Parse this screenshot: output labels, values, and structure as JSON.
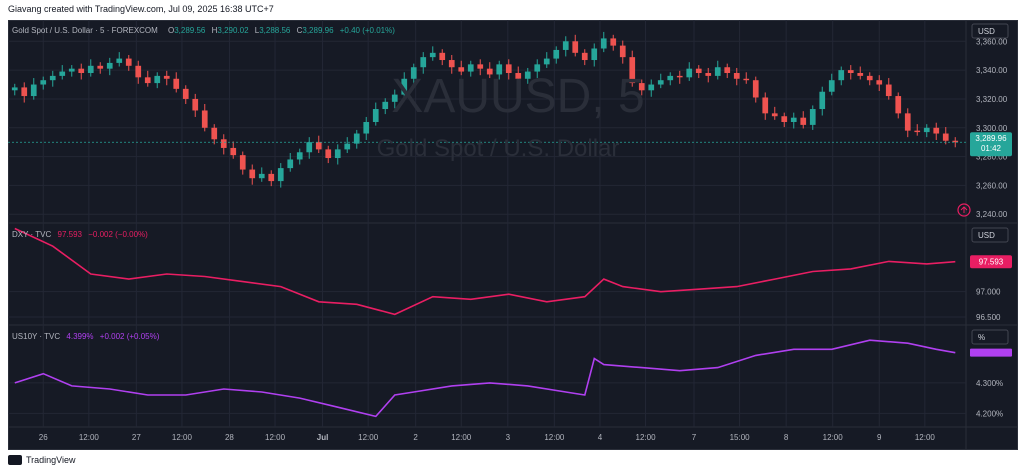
{
  "header_text": "Giavang created with TradingView.com, Jul 09, 2025 16:38 UTC+7",
  "footer_text": "TradingView",
  "colors": {
    "bg": "#161a25",
    "grid": "#232735",
    "text": "#b2b5be",
    "candle_up": "#26a69a",
    "candle_down": "#ef5350",
    "dxy": "#e91e63",
    "us10y": "#b040f0",
    "last_price_bg": "#26a69a"
  },
  "chart_data": [
    {
      "type": "candlestick",
      "symbol": "Gold Spot / U.S. Dollar · 5 · FOREXCOM",
      "ohlc": {
        "o_label": "O",
        "o": "3,289.56",
        "h_label": "H",
        "h": "3,290.02",
        "l_label": "L",
        "l": "3,288.56",
        "c_label": "C",
        "c": "3,289.96",
        "change": "+0.40 (+0.01%)"
      },
      "watermark": "XAUUSD, 5",
      "watermark_sub": "Gold Spot / U.S. Dollar",
      "currency": "USD",
      "last_price": "3,289.96",
      "countdown": "01:42",
      "y_ticks": [
        "3,360.00",
        "3,340.00",
        "3,320.00",
        "3,300.00",
        "3,280.00",
        "3,260.00",
        "3,240.00"
      ],
      "y_tick_values": [
        3360,
        3340,
        3320,
        3300,
        3280,
        3260,
        3240
      ],
      "ylim": [
        3236,
        3372
      ],
      "x": [
        0,
        1,
        2,
        3,
        4,
        5,
        6,
        7,
        8,
        9,
        10,
        11,
        12,
        13,
        14,
        15,
        16,
        17,
        18,
        19,
        20,
        21,
        22,
        23,
        24,
        25,
        26,
        27,
        28,
        29,
        30,
        31,
        32,
        33,
        34,
        35,
        36,
        37,
        38,
        39,
        40,
        41,
        42,
        43,
        44,
        45,
        46,
        47,
        48,
        49,
        50,
        51,
        52,
        53,
        54,
        55,
        56,
        57,
        58,
        59,
        60,
        61,
        62,
        63,
        64,
        65,
        66,
        67,
        68,
        69,
        70,
        71,
        72,
        73,
        74,
        75,
        76,
        77,
        78,
        79,
        80,
        81,
        82,
        83,
        84,
        85,
        86,
        87,
        88,
        89,
        90,
        91,
        92,
        93,
        94,
        95,
        96,
        97,
        98,
        99
      ],
      "close": [
        3328,
        3322,
        3330,
        3333,
        3336,
        3339,
        3341,
        3338,
        3343,
        3341,
        3345,
        3348,
        3343,
        3335,
        3331,
        3336,
        3334,
        3327,
        3320,
        3312,
        3300,
        3292,
        3286,
        3281,
        3271,
        3265,
        3268,
        3263,
        3272,
        3278,
        3283,
        3290,
        3285,
        3279,
        3285,
        3289,
        3296,
        3304,
        3313,
        3318,
        3323,
        3334,
        3342,
        3349,
        3352,
        3347,
        3342,
        3339,
        3344,
        3341,
        3337,
        3344,
        3338,
        3334,
        3339,
        3344,
        3348,
        3354,
        3360,
        3352,
        3347,
        3355,
        3362,
        3357,
        3349,
        3331,
        3326,
        3330,
        3333,
        3336,
        3335,
        3341,
        3338,
        3336,
        3342,
        3338,
        3334,
        3333,
        3321,
        3310,
        3308,
        3304,
        3307,
        3302,
        3313,
        3325,
        3333,
        3340,
        3338,
        3336,
        3333,
        3330,
        3322,
        3310,
        3298,
        3297,
        3300,
        3296,
        3291,
        3289.96
      ],
      "last_index": 99
    },
    {
      "type": "line",
      "symbol": "DXY · TVC",
      "value": "97.593",
      "change": "−0.002 (−0.00%)",
      "currency": "USD",
      "last_label": "97.593",
      "y_ticks": [
        "97.000",
        "96.500"
      ],
      "y_tick_values": [
        97.0,
        96.5
      ],
      "ylim": [
        96.4,
        98.3
      ],
      "x": [
        0,
        4,
        8,
        12,
        16,
        20,
        24,
        28,
        32,
        36,
        40,
        44,
        48,
        52,
        56,
        60,
        62,
        64,
        68,
        72,
        76,
        80,
        84,
        88,
        92,
        96,
        99
      ],
      "values": [
        98.25,
        97.9,
        97.35,
        97.25,
        97.35,
        97.3,
        97.2,
        97.1,
        96.8,
        96.75,
        96.55,
        96.9,
        96.85,
        96.95,
        96.8,
        96.9,
        97.25,
        97.1,
        97.0,
        97.05,
        97.1,
        97.25,
        97.4,
        97.45,
        97.6,
        97.55,
        97.593
      ]
    },
    {
      "type": "line",
      "symbol": "US10Y · TVC",
      "value": "4.399%",
      "change": "+0.002 (+0.05%)",
      "currency": "%",
      "y_ticks": [
        "4.300%",
        "4.200%"
      ],
      "y_tick_values": [
        4.3,
        4.2
      ],
      "ylim": [
        4.165,
        4.48
      ],
      "x": [
        0,
        3,
        6,
        10,
        14,
        18,
        22,
        26,
        30,
        34,
        38,
        40,
        42,
        46,
        50,
        54,
        58,
        60,
        61,
        62,
        66,
        70,
        74,
        78,
        82,
        86,
        90,
        94,
        97,
        99
      ],
      "values": [
        4.3,
        4.33,
        4.29,
        4.28,
        4.26,
        4.26,
        4.28,
        4.27,
        4.25,
        4.22,
        4.19,
        4.26,
        4.27,
        4.29,
        4.3,
        4.29,
        4.27,
        4.26,
        4.38,
        4.36,
        4.35,
        4.34,
        4.35,
        4.39,
        4.41,
        4.41,
        4.44,
        4.43,
        4.41,
        4.399
      ]
    }
  ],
  "x_axis": {
    "labels": [
      "26",
      "12:00",
      "27",
      "12:00",
      "28",
      "12:00",
      "Jul",
      "12:00",
      "2",
      "12:00",
      "3",
      "12:00",
      "4",
      "12:00",
      "7",
      "15:00",
      "8",
      "12:00",
      "9",
      "12:00"
    ],
    "bold": [
      false,
      false,
      false,
      false,
      false,
      false,
      true,
      false,
      false,
      false,
      false,
      false,
      false,
      false,
      false,
      false,
      false,
      false,
      false,
      false
    ],
    "index": [
      3,
      7.8,
      12.8,
      17.6,
      22.6,
      27.4,
      32.4,
      37.2,
      42.2,
      47,
      51.9,
      56.8,
      61.6,
      66.4,
      71.5,
      76.3,
      81.2,
      86.1,
      91,
      95.8
    ]
  }
}
